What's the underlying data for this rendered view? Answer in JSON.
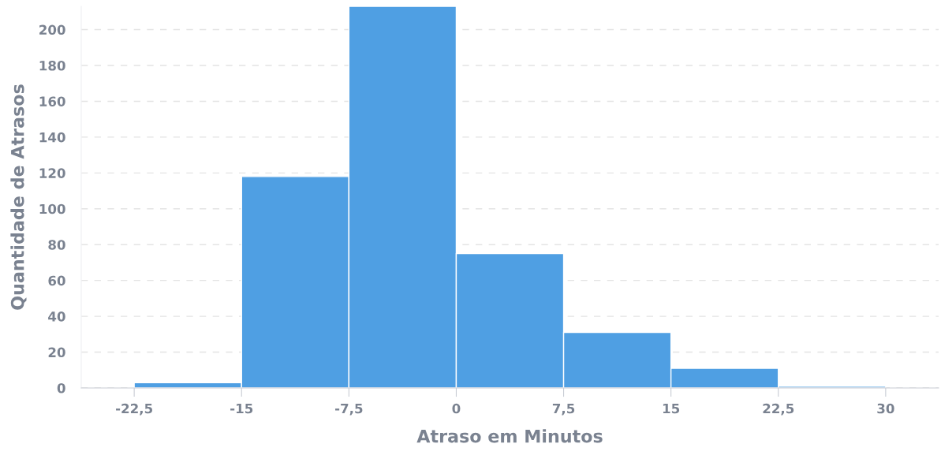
{
  "chart_data": {
    "type": "histogram",
    "xlabel": "Atraso em Minutos",
    "ylabel": "Quantidade de Atrasos",
    "bins": [
      -22.5,
      -15,
      -7.5,
      0,
      7.5,
      15,
      22.5,
      30
    ],
    "values": [
      3,
      118,
      213,
      75,
      31,
      11,
      1
    ],
    "color": "#4f9fe3",
    "xlim": [
      -26.2,
      33.7
    ],
    "ylim": [
      0,
      213
    ],
    "xticks": [
      {
        "value": -22.5,
        "label": "-22,5"
      },
      -15,
      {
        "value": -7.5,
        "label": "-7,5"
      },
      0,
      {
        "value": 7.5,
        "label": "7,5"
      },
      15,
      {
        "value": 22.5,
        "label": "22,5"
      },
      30
    ],
    "yticks": [
      0,
      20,
      40,
      60,
      80,
      100,
      120,
      140,
      160,
      180,
      200
    ],
    "grid": "y"
  }
}
